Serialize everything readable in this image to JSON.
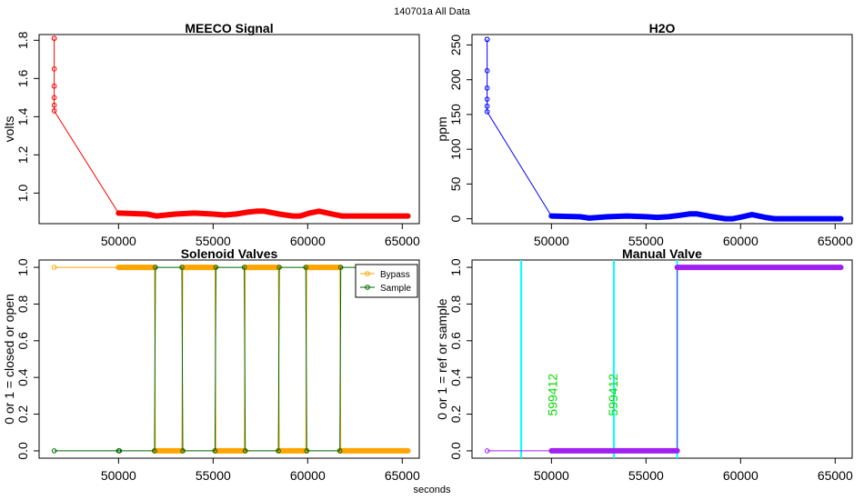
{
  "suptitle": "140701a   All Data",
  "xlabel": "seconds",
  "colors": {
    "meeco": "#ff0000",
    "h2o": "#0000ff",
    "bypass": "#ffa500",
    "sample": "#006400",
    "manual": "#a020f0",
    "markers": "#00ffff",
    "marker_labels": "#00dd00"
  },
  "chart_data": [
    {
      "id": "meeco",
      "type": "line",
      "title": "MEECO Signal",
      "xlabel": "",
      "ylabel": "volts",
      "xlim": [
        45800,
        65900
      ],
      "ylim": [
        0.84,
        1.83
      ],
      "xticks": [
        50000,
        55000,
        60000,
        65000
      ],
      "xtick_labels": [
        "50000",
        "55000",
        "60000",
        "65000"
      ],
      "yticks": [
        1.0,
        1.2,
        1.4,
        1.6,
        1.8
      ],
      "ytick_labels": [
        "1.0",
        "1.2",
        "1.4",
        "1.6",
        "1.8"
      ],
      "series": [
        {
          "name": "MEECO",
          "color": "#ff0000",
          "x": [
            46600,
            46600,
            46600,
            46600,
            46600,
            46600,
            46600,
            50000,
            51500,
            52000,
            53000,
            54000,
            55000,
            55600,
            56200,
            56800,
            57300,
            57700,
            58500,
            59200,
            59600,
            60100,
            60600,
            61300,
            61800,
            63000,
            64500,
            65300
          ],
          "y": [
            1.81,
            1.81,
            1.65,
            1.56,
            1.5,
            1.46,
            1.43,
            0.895,
            0.89,
            0.88,
            0.89,
            0.895,
            0.89,
            0.885,
            0.89,
            0.9,
            0.905,
            0.905,
            0.89,
            0.88,
            0.88,
            0.895,
            0.905,
            0.89,
            0.88,
            0.88,
            0.88,
            0.88
          ]
        }
      ],
      "dense_segments": [
        {
          "x": [
            50000,
            51500,
            52000,
            53000,
            54000,
            55000,
            55600,
            56200,
            56800,
            57300,
            57700,
            58500,
            59200,
            59600,
            60100,
            60600,
            61300,
            61800,
            63000,
            64500,
            65300
          ],
          "y": [
            0.895,
            0.89,
            0.88,
            0.89,
            0.895,
            0.89,
            0.885,
            0.89,
            0.9,
            0.905,
            0.905,
            0.89,
            0.88,
            0.88,
            0.895,
            0.905,
            0.89,
            0.88,
            0.88,
            0.88,
            0.88
          ]
        }
      ]
    },
    {
      "id": "h2o",
      "type": "line",
      "title": "H2O",
      "xlabel": "",
      "ylabel": "ppm",
      "xlim": [
        45800,
        65900
      ],
      "ylim": [
        -7,
        265
      ],
      "xticks": [
        50000,
        55000,
        60000,
        65000
      ],
      "xtick_labels": [
        "50000",
        "55000",
        "60000",
        "65000"
      ],
      "yticks": [
        0,
        50,
        100,
        150,
        200,
        250
      ],
      "ytick_labels": [
        "0",
        "50",
        "100",
        "150",
        "200",
        "250"
      ],
      "series": [
        {
          "name": "H2O",
          "color": "#0000ff",
          "x": [
            46600,
            46600,
            46600,
            46600,
            46600,
            46600,
            46600,
            50000,
            51500,
            52000,
            53000,
            54000,
            55000,
            55600,
            56200,
            56800,
            57300,
            57700,
            58500,
            59200,
            59600,
            60100,
            60600,
            61300,
            61800,
            63000,
            64500,
            65300
          ],
          "y": [
            258,
            258,
            213,
            188,
            172,
            162,
            154,
            4,
            3,
            1,
            3,
            4,
            3,
            2,
            3,
            5,
            7,
            7,
            3,
            0,
            0,
            3,
            6,
            2,
            0,
            0,
            0,
            0
          ]
        }
      ],
      "dense_segments": [
        {
          "x": [
            50000,
            51500,
            52000,
            53000,
            54000,
            55000,
            55600,
            56200,
            56800,
            57300,
            57700,
            58500,
            59200,
            59600,
            60100,
            60600,
            61300,
            61800,
            63000,
            64500,
            65300
          ],
          "y": [
            4,
            3,
            1,
            3,
            4,
            3,
            2,
            3,
            5,
            7,
            7,
            3,
            0,
            0,
            3,
            6,
            2,
            0,
            0,
            0,
            0
          ]
        }
      ]
    },
    {
      "id": "solenoid",
      "type": "line",
      "title": "Solenoid Valves",
      "xlabel": "",
      "ylabel": "0 or 1 = closed or open",
      "xlim": [
        45800,
        65900
      ],
      "ylim": [
        -0.04,
        1.04
      ],
      "xticks": [
        50000,
        55000,
        60000,
        65000
      ],
      "xtick_labels": [
        "50000",
        "55000",
        "60000",
        "65000"
      ],
      "yticks": [
        0.0,
        0.2,
        0.4,
        0.6,
        0.8,
        1.0
      ],
      "ytick_labels": [
        "0.0",
        "0.2",
        "0.4",
        "0.6",
        "0.8",
        "1.0"
      ],
      "legend": {
        "position": "top-right",
        "entries": [
          "Bypass",
          "Sample"
        ]
      },
      "series": [
        {
          "name": "Bypass",
          "color": "#ffa500",
          "x": [
            46600,
            50000,
            50050,
            51900,
            51950,
            53350,
            53400,
            55100,
            55150,
            56650,
            56700,
            58450,
            58500,
            59900,
            59950,
            61700,
            61750,
            65300
          ],
          "y": [
            1,
            1,
            1,
            1,
            0,
            0,
            1,
            1,
            0,
            0,
            1,
            1,
            0,
            0,
            1,
            1,
            0,
            0
          ]
        },
        {
          "name": "Sample",
          "color": "#006400",
          "x": [
            46600,
            50000,
            50050,
            51900,
            51950,
            53350,
            53400,
            55100,
            55150,
            56650,
            56700,
            58450,
            58500,
            59900,
            59950,
            61700,
            61750,
            65300
          ],
          "y": [
            0,
            0,
            0,
            0,
            1,
            1,
            0,
            0,
            1,
            1,
            0,
            0,
            1,
            1,
            0,
            0,
            1,
            1
          ]
        }
      ],
      "dense_segments": [
        {
          "series": "Bypass",
          "x1": 50000,
          "x2": 51900,
          "y": 1
        },
        {
          "series": "Bypass",
          "x1": 51900,
          "x2": 53400,
          "y": 0
        },
        {
          "series": "Bypass",
          "x1": 53400,
          "x2": 55100,
          "y": 1
        },
        {
          "series": "Bypass",
          "x1": 55100,
          "x2": 56700,
          "y": 0
        },
        {
          "series": "Bypass",
          "x1": 56700,
          "x2": 58450,
          "y": 1
        },
        {
          "series": "Bypass",
          "x1": 58450,
          "x2": 59950,
          "y": 0
        },
        {
          "series": "Bypass",
          "x1": 59950,
          "x2": 61700,
          "y": 1
        },
        {
          "series": "Bypass",
          "x1": 61700,
          "x2": 65300,
          "y": 0
        }
      ]
    },
    {
      "id": "manual",
      "type": "line",
      "title": "Manual Valve",
      "xlabel": "",
      "ylabel": "0 or 1 = ref or sample",
      "xlim": [
        45800,
        65900
      ],
      "ylim": [
        -0.04,
        1.04
      ],
      "xticks": [
        50000,
        55000,
        60000,
        65000
      ],
      "xtick_labels": [
        "50000",
        "55000",
        "60000",
        "65000"
      ],
      "yticks": [
        0.0,
        0.2,
        0.4,
        0.6,
        0.8,
        1.0
      ],
      "ytick_labels": [
        "0.0",
        "0.2",
        "0.4",
        "0.6",
        "0.8",
        "1.0"
      ],
      "series": [
        {
          "name": "Manual",
          "color": "#a020f0",
          "x": [
            46600,
            50000,
            56650,
            56650,
            65300
          ],
          "y": [
            0,
            0,
            0,
            1,
            1
          ]
        }
      ],
      "dense_segments": [
        {
          "series": "Manual",
          "x1": 50000,
          "x2": 56650,
          "y": 0
        },
        {
          "series": "Manual",
          "x1": 56650,
          "x2": 65300,
          "y": 1
        }
      ],
      "vlines": [
        48400,
        53300,
        56650
      ],
      "annotations": [
        {
          "x": 50300,
          "y": 0.19,
          "text": "599412"
        },
        {
          "x": 53500,
          "y": 0.19,
          "text": "599412"
        }
      ]
    }
  ]
}
